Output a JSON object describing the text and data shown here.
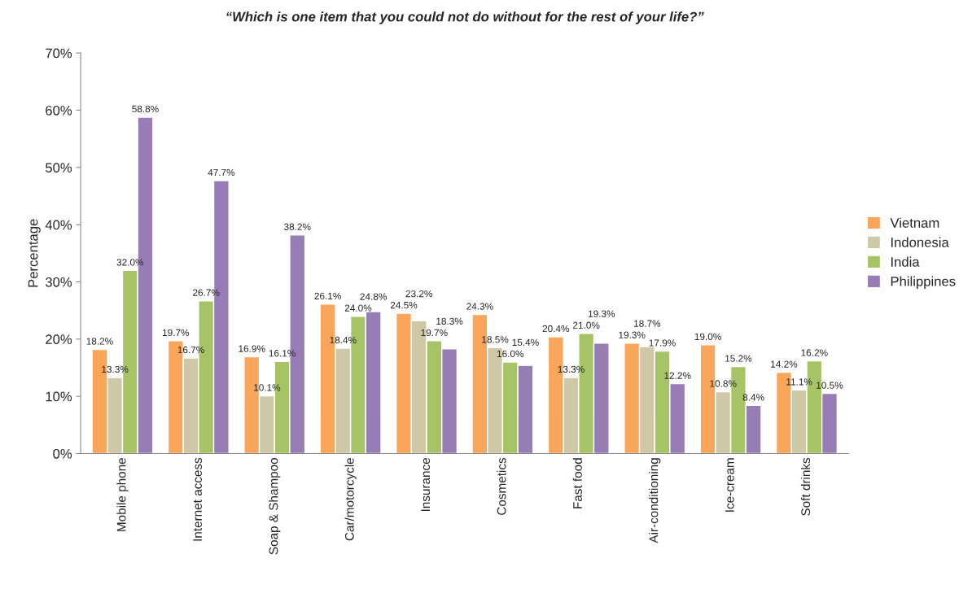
{
  "chart_data": {
    "type": "bar",
    "title": "“Which is one item that you could not do without for the rest of your life?”",
    "ylabel": "Percentage",
    "categories": [
      "Mobile phone",
      "Internet access",
      "Soap & Shampoo",
      "Car/motorcycle",
      "Insurance",
      "Cosmetics",
      "Fast food",
      "Air-conditioning",
      "Ice-cream",
      "Soft drinks"
    ],
    "series": [
      {
        "name": "Vietnam",
        "color": "#f9a55a",
        "values": [
          18.2,
          19.7,
          16.9,
          26.1,
          24.5,
          24.3,
          20.4,
          19.3,
          19.0,
          14.2
        ],
        "value_labels": [
          "18.2%",
          "19.7%",
          "16.9%",
          "26.1%",
          "24.5%",
          "24.3%",
          "20.4%",
          "19.3%",
          "19.0%",
          "14.2%"
        ]
      },
      {
        "name": "Indonesia",
        "color": "#cfc8a6",
        "values": [
          13.3,
          16.7,
          10.1,
          18.4,
          23.2,
          18.5,
          13.3,
          18.7,
          10.8,
          11.1
        ],
        "value_labels": [
          "13.3%",
          "16.7%",
          "10.1%",
          "18.4%",
          "23.2%",
          "18.5%",
          "13.3%",
          "18.7%",
          "10.8%",
          "11.1%"
        ]
      },
      {
        "name": "India",
        "color": "#a6c466",
        "values": [
          32.0,
          26.7,
          16.1,
          24.0,
          19.7,
          16.0,
          21.0,
          17.9,
          15.2,
          16.2
        ],
        "value_labels": [
          "32.0%",
          "26.7%",
          "16.1%",
          "24.0%",
          "19.7%",
          "16.0%",
          "21.0%",
          "17.9%",
          "15.2%",
          "16.2%"
        ]
      },
      {
        "name": "Philippines",
        "color": "#977db6",
        "values": [
          58.8,
          47.7,
          38.2,
          24.8,
          18.3,
          15.4,
          19.3,
          12.2,
          8.4,
          10.5
        ],
        "value_labels": [
          "58.8%",
          "47.7%",
          "38.2%",
          "24.8%",
          "18.3%",
          "15.4%",
          "19.3%",
          "12.2%",
          "8.4%",
          "10.5%"
        ]
      }
    ],
    "ylim": [
      0,
      70
    ],
    "yticks": [
      {
        "value": 0,
        "label": "0%"
      },
      {
        "value": 10,
        "label": "10%"
      },
      {
        "value": 20,
        "label": "20%"
      },
      {
        "value": 30,
        "label": "30%"
      },
      {
        "value": 40,
        "label": "40%"
      },
      {
        "value": 50,
        "label": "50%"
      },
      {
        "value": 60,
        "label": "60%"
      },
      {
        "value": 70,
        "label": "70%"
      }
    ],
    "grid": false,
    "legend": "right"
  }
}
